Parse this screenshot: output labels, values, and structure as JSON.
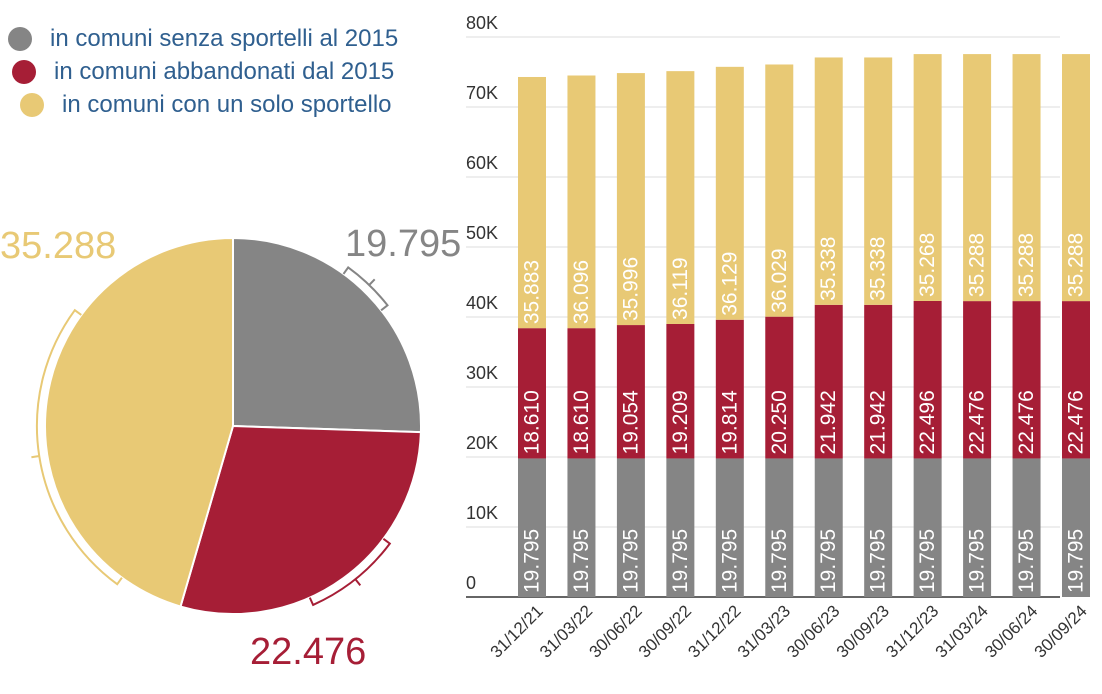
{
  "colors": {
    "senza": "#858585",
    "abbandonati": "#a61e36",
    "solo": "#e8c975",
    "legend_text": "#2f5f8f",
    "grid": "#dcdcdc",
    "axis_text": "#333333"
  },
  "legend": [
    {
      "label": "in comuni senza sportelli al 2015",
      "color_key": "senza"
    },
    {
      "label": "in comuni abbandonati dal 2015",
      "color_key": "abbandonati"
    },
    {
      "label": "in comuni con un solo sportello",
      "color_key": "solo"
    }
  ],
  "chart_data": [
    {
      "type": "pie",
      "labels": [
        "in comuni senza sportelli al 2015",
        "in comuni abbandonati dal 2015",
        "in comuni con un solo sportello"
      ],
      "values": [
        19795,
        22476,
        35288
      ],
      "value_labels": [
        "19.795",
        "22.476",
        "35.288"
      ]
    },
    {
      "type": "bar",
      "stacked": true,
      "categories": [
        "31/12/21",
        "31/03/22",
        "30/06/22",
        "30/09/22",
        "31/12/22",
        "31/03/23",
        "30/06/23",
        "30/09/23",
        "31/12/23",
        "31/03/24",
        "30/06/24",
        "30/09/24"
      ],
      "series": [
        {
          "name": "in comuni senza sportelli al 2015",
          "color_key": "senza",
          "values": [
            19795,
            19795,
            19795,
            19795,
            19795,
            19795,
            19795,
            19795,
            19795,
            19795,
            19795,
            19795
          ],
          "labels": [
            "19.795",
            "19.795",
            "19.795",
            "19.795",
            "19.795",
            "19.795",
            "19.795",
            "19.795",
            "19.795",
            "19.795",
            "19.795",
            "19.795"
          ]
        },
        {
          "name": "in comuni abbandonati dal 2015",
          "color_key": "abbandonati",
          "values": [
            18610,
            18610,
            19054,
            19209,
            19814,
            20250,
            21942,
            21942,
            22496,
            22476,
            22476,
            22476
          ],
          "labels": [
            "18.610",
            "18.610",
            "19.054",
            "19.209",
            "19.814",
            "20.250",
            "21.942",
            "21.942",
            "22.496",
            "22.476",
            "22.476",
            "22.476"
          ]
        },
        {
          "name": "in comuni con un solo sportello",
          "color_key": "solo",
          "values": [
            35883,
            36096,
            35996,
            36119,
            36129,
            36029,
            35338,
            35338,
            35268,
            35288,
            35288,
            35288
          ],
          "labels": [
            "35.883",
            "36.096",
            "35.996",
            "36.119",
            "36.129",
            "36.029",
            "35.338",
            "35.338",
            "35.268",
            "35.288",
            "35.288",
            "35.288"
          ]
        }
      ],
      "ylim": [
        0,
        80000
      ],
      "yticks": [
        0,
        10000,
        20000,
        30000,
        40000,
        50000,
        60000,
        70000,
        80000
      ],
      "ytick_labels": [
        "0",
        "10K",
        "20K",
        "30K",
        "40K",
        "50K",
        "60K",
        "70K",
        "80K"
      ],
      "grid": true,
      "legend_position": "top-left"
    }
  ]
}
